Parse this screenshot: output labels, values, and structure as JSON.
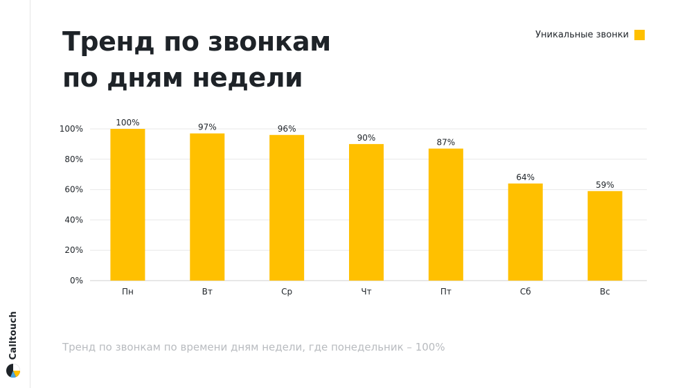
{
  "title": {
    "line1": "Тренд по звонкам",
    "line2": "по дням недели"
  },
  "brand": {
    "name": "Calltouch",
    "icon": "calltouch-logo-icon"
  },
  "legend": {
    "label": "Уникальные звонки",
    "color": "#ffc000"
  },
  "footnote": "Тренд по звонкам по времени дням недели, где понедельник – 100%",
  "chart_data": {
    "type": "bar",
    "categories": [
      "Пн",
      "Вт",
      "Ср",
      "Чт",
      "Пт",
      "Сб",
      "Вс"
    ],
    "series": [
      {
        "name": "Уникальные звонки",
        "values": [
          100,
          97,
          96,
          90,
          87,
          64,
          59
        ],
        "color": "#ffc000"
      }
    ],
    "data_labels": [
      "100%",
      "97%",
      "96%",
      "90%",
      "87%",
      "64%",
      "59%"
    ],
    "y_ticks": [
      0,
      20,
      40,
      60,
      80,
      100
    ],
    "y_tick_labels": [
      "0%",
      "20%",
      "40%",
      "60%",
      "80%",
      "100%"
    ],
    "ylim": [
      0,
      100
    ],
    "xlabel": "",
    "ylabel": "",
    "grid": true,
    "legend_position": "top-right"
  }
}
